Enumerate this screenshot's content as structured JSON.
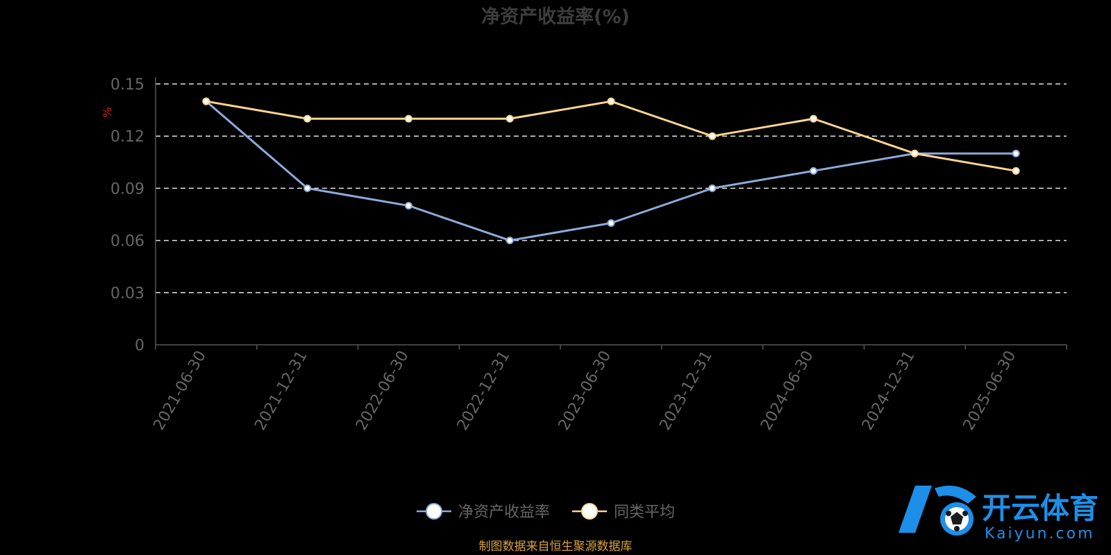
{
  "chart_data": {
    "type": "line",
    "title": "净资产收益率(%)",
    "ylabel": "%",
    "xlabel": "",
    "categories": [
      "2021-06-30",
      "2021-12-31",
      "2022-06-30",
      "2022-12-31",
      "2023-06-30",
      "2023-12-31",
      "2024-06-30",
      "2024-12-31",
      "2025-06-30"
    ],
    "y_ticks": [
      "0",
      "0.03",
      "0.06",
      "0.09",
      "0.12",
      "0.15"
    ],
    "ylim": [
      0,
      0.15
    ],
    "grid": true,
    "legend_position": "bottom",
    "series": [
      {
        "name": "净资产收益率",
        "color": "#8eaadb",
        "values": [
          0.14,
          0.09,
          0.08,
          0.06,
          0.07,
          0.09,
          0.1,
          0.11,
          0.11
        ]
      },
      {
        "name": "同类平均",
        "color": "#ffd591",
        "values": [
          0.14,
          0.13,
          0.13,
          0.13,
          0.14,
          0.12,
          0.13,
          0.11,
          0.1
        ]
      }
    ]
  },
  "footer": {
    "source": "制图数据来自恒生聚源数据库"
  },
  "watermark": {
    "cn": "开云体育",
    "en": "Kaiyun.com",
    "icon": "kaiyun-logo-icon",
    "accent": "#1e8fe8"
  }
}
